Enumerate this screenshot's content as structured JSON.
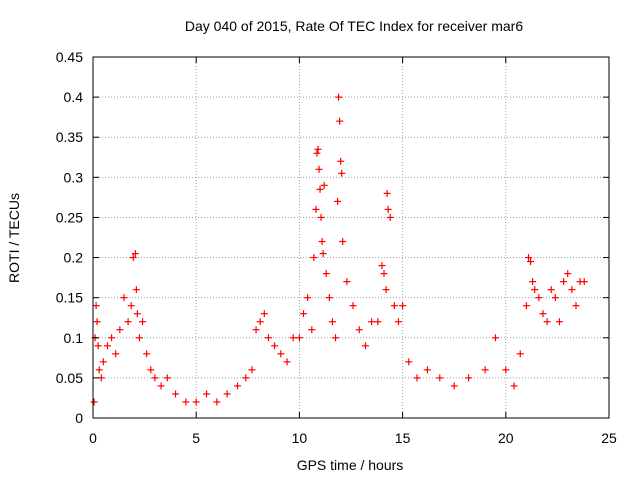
{
  "chart_data": {
    "type": "scatter",
    "title": "Day 040 of 2015, Rate Of TEC Index for receiver mar6",
    "xlabel": "GPS time / hours",
    "ylabel": "ROTI / TECUs",
    "xlim": [
      0,
      25
    ],
    "ylim": [
      0,
      0.45
    ],
    "xticks": [
      "0",
      "5",
      "10",
      "15",
      "20",
      "25"
    ],
    "yticks": [
      "0",
      "0.05",
      "0.1",
      "0.15",
      "0.2",
      "0.25",
      "0.3",
      "0.35",
      "0.4",
      "0.45"
    ],
    "grid": true,
    "legend": "none",
    "marker": "+",
    "series_color": "#ff0000",
    "series": [
      {
        "x": [
          0.05,
          0.1,
          0.15,
          0.2,
          0.25,
          0.3,
          0.4,
          0.5,
          0.7,
          0.9,
          1.1,
          1.3,
          1.5,
          1.7,
          1.85,
          1.95,
          2.05,
          2.1,
          2.15,
          2.25,
          2.4,
          2.6,
          2.8,
          3.0,
          3.3,
          3.6,
          4.0,
          4.5,
          5.0,
          5.5,
          6.0,
          6.5,
          7.0,
          7.4,
          7.7,
          7.9,
          8.1,
          8.3,
          8.5,
          8.8,
          9.1,
          9.4,
          9.7,
          10.0,
          10.2,
          10.4,
          10.6,
          10.7,
          10.8,
          10.85,
          10.9,
          10.95,
          11.0,
          11.05,
          11.1,
          11.15,
          11.2,
          11.3,
          11.45,
          11.6,
          11.75,
          11.85,
          11.9,
          11.95,
          12.0,
          12.05,
          12.1,
          12.3,
          12.6,
          12.9,
          13.2,
          13.5,
          13.8,
          14.0,
          14.1,
          14.2,
          14.25,
          14.3,
          14.4,
          14.6,
          14.8,
          15.0,
          15.3,
          15.7,
          16.2,
          16.8,
          17.5,
          18.2,
          19.0,
          19.5,
          20.0,
          20.4,
          20.7,
          21.0,
          21.1,
          21.2,
          21.3,
          21.4,
          21.6,
          21.8,
          22.0,
          22.2,
          22.4,
          22.6,
          22.8,
          23.0,
          23.2,
          23.4,
          23.6,
          23.8
        ],
        "y": [
          0.02,
          0.1,
          0.14,
          0.12,
          0.09,
          0.06,
          0.05,
          0.07,
          0.09,
          0.1,
          0.08,
          0.11,
          0.15,
          0.12,
          0.14,
          0.2,
          0.205,
          0.16,
          0.13,
          0.1,
          0.12,
          0.08,
          0.06,
          0.05,
          0.04,
          0.05,
          0.03,
          0.02,
          0.02,
          0.03,
          0.02,
          0.03,
          0.04,
          0.05,
          0.06,
          0.11,
          0.12,
          0.13,
          0.1,
          0.09,
          0.08,
          0.07,
          0.1,
          0.1,
          0.13,
          0.15,
          0.11,
          0.2,
          0.26,
          0.33,
          0.335,
          0.31,
          0.285,
          0.25,
          0.22,
          0.205,
          0.29,
          0.18,
          0.15,
          0.12,
          0.1,
          0.27,
          0.4,
          0.37,
          0.32,
          0.305,
          0.22,
          0.17,
          0.14,
          0.11,
          0.09,
          0.12,
          0.12,
          0.19,
          0.18,
          0.16,
          0.28,
          0.26,
          0.25,
          0.14,
          0.12,
          0.14,
          0.07,
          0.05,
          0.06,
          0.05,
          0.04,
          0.05,
          0.06,
          0.1,
          0.06,
          0.04,
          0.08,
          0.14,
          0.2,
          0.195,
          0.17,
          0.16,
          0.15,
          0.13,
          0.12,
          0.16,
          0.15,
          0.12,
          0.17,
          0.18,
          0.16,
          0.14,
          0.17,
          0.17
        ]
      }
    ]
  }
}
